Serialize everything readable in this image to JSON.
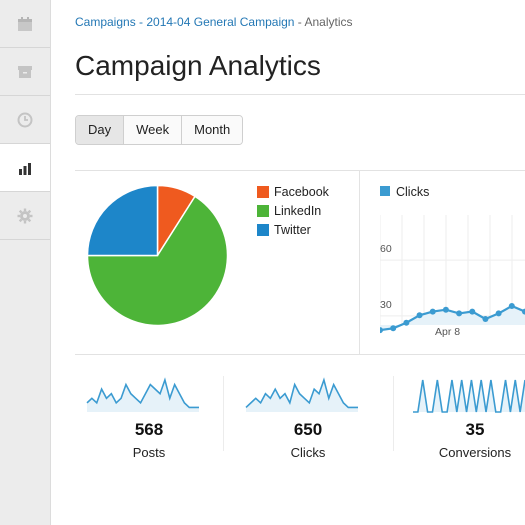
{
  "breadcrumb": {
    "link": "Campaigns - 2014-04 General Campaign",
    "current": " - Analytics"
  },
  "page_title": "Campaign Analytics",
  "range_buttons": [
    "Day",
    "Week",
    "Month"
  ],
  "active_range": "Day",
  "sidebar": {
    "items": [
      {
        "icon": "calendar-icon"
      },
      {
        "icon": "archive-icon"
      },
      {
        "icon": "clock-icon"
      },
      {
        "icon": "bar-chart-icon",
        "active": true
      },
      {
        "icon": "gear-icon"
      }
    ]
  },
  "colors": {
    "facebook": "#ef5a1f",
    "linkedin": "#4db438",
    "twitter": "#1d86c9",
    "line": "#3b9bd1",
    "fill": "#e6f2f9"
  },
  "chart_data": [
    {
      "type": "pie",
      "categories": [
        "Facebook",
        "LinkedIn",
        "Twitter"
      ],
      "values": [
        9,
        66,
        25
      ]
    },
    {
      "type": "line",
      "series": [
        {
          "name": "Clicks",
          "values": [
            18,
            19,
            22,
            26,
            28,
            29,
            27,
            28,
            24,
            27,
            31,
            28
          ]
        }
      ],
      "x_tick_labels": [
        "Apr 8"
      ],
      "y_tick_labels": [
        "60",
        "30"
      ],
      "ylim": [
        10,
        80
      ]
    }
  ],
  "stats": [
    {
      "value": "568",
      "label": "Posts",
      "spark": [
        2,
        3,
        2,
        5,
        3,
        4,
        2,
        3,
        6,
        4,
        3,
        2,
        4,
        6,
        5,
        4,
        7,
        3,
        6,
        4,
        2,
        1,
        1,
        1
      ]
    },
    {
      "value": "650",
      "label": "Clicks",
      "spark": [
        1,
        2,
        3,
        2,
        4,
        3,
        5,
        3,
        4,
        2,
        6,
        4,
        3,
        2,
        5,
        4,
        7,
        3,
        6,
        4,
        2,
        1,
        1,
        1
      ]
    },
    {
      "value": "35",
      "label": "Conversions",
      "spark": [
        0,
        0,
        9,
        0,
        0,
        9,
        0,
        0,
        9,
        0,
        9,
        0,
        9,
        0,
        9,
        0,
        9,
        0,
        0,
        9,
        0,
        9,
        0,
        9
      ]
    }
  ]
}
